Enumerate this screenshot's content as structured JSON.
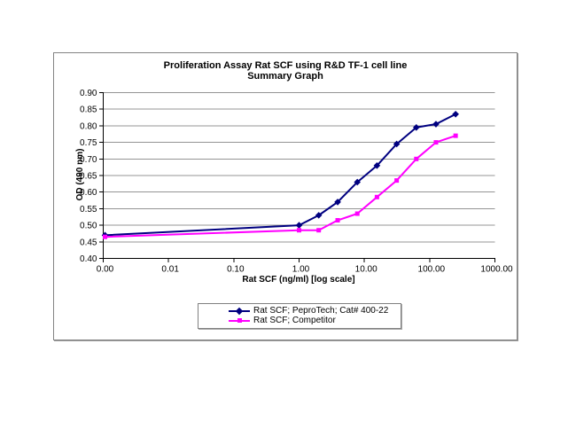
{
  "chart": {
    "title_line1": "Proliferation Assay Rat SCF using R&D TF-1 cell line",
    "title_line2": "Summary Graph",
    "y_axis": {
      "title": "OD (490 nm)",
      "tick_labels": [
        "0.90",
        "0.85",
        "0.80",
        "0.75",
        "0.70",
        "0.65",
        "0.60",
        "0.55",
        "0.50",
        "0.45",
        "0.40"
      ]
    },
    "x_axis": {
      "title": "Rat SCF (ng/ml) [log scale]",
      "tick_labels": [
        "0.00",
        "0.01",
        "0.10",
        "1.00",
        "10.00",
        "100.00",
        "1000.00"
      ]
    },
    "colors": {
      "series1": "#000080",
      "series2": "#FF00FF",
      "gridline": "#949494",
      "axis": "#000000",
      "chart_border": "#848484"
    }
  },
  "chart_data": {
    "type": "line",
    "title": "Proliferation Assay Rat SCF using R&D TF-1 cell line",
    "subtitle": "Summary Graph",
    "xlabel": "Rat SCF (ng/ml) [log scale]",
    "ylabel": "OD (490 nm)",
    "x_scale": "log",
    "ylim": [
      0.4,
      0.9
    ],
    "y_tick_step": 0.05,
    "x_ticks": [
      0,
      0.01,
      0.1,
      1,
      10,
      100,
      1000
    ],
    "grid": "horizontal",
    "legend_position": "bottom",
    "series": [
      {
        "name": "Rat SCF; PeproTech; Cat# 400-22",
        "color": "#000080",
        "marker": "diamond",
        "x": [
          0,
          1,
          2,
          3.9,
          7.8,
          15.6,
          31.25,
          62.5,
          125,
          250
        ],
        "y": [
          0.47,
          0.5,
          0.53,
          0.57,
          0.63,
          0.68,
          0.745,
          0.795,
          0.805,
          0.835
        ]
      },
      {
        "name": "Rat SCF; Competitor",
        "color": "#FF00FF",
        "marker": "square",
        "x": [
          0,
          1,
          2,
          3.9,
          7.8,
          15.6,
          31.25,
          62.5,
          125,
          250
        ],
        "y": [
          0.465,
          0.485,
          0.485,
          0.515,
          0.535,
          0.585,
          0.635,
          0.7,
          0.75,
          0.77
        ]
      }
    ]
  }
}
